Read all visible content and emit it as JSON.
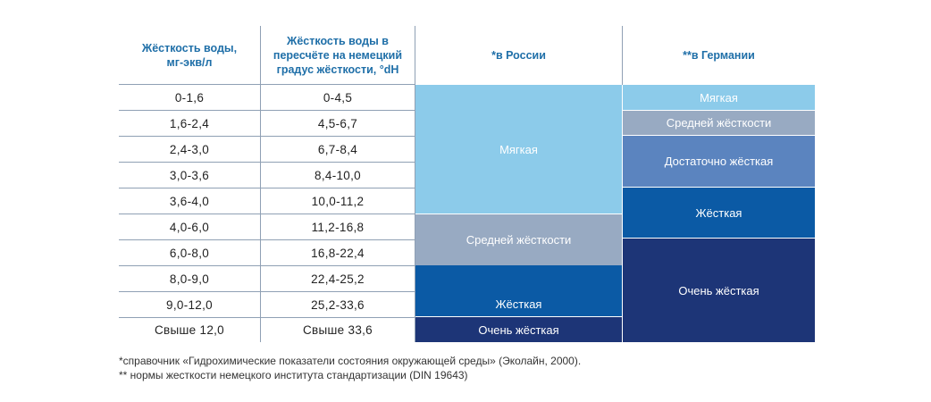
{
  "headers": {
    "col1": "Жёсткость воды,\nмг-экв/л",
    "col2": "Жёсткость воды в\nпересчёте на немецкий\nградус жёсткости, °dH",
    "col3": "*в России",
    "col4": "**в Германии"
  },
  "rows": [
    {
      "mg": "0-1,6",
      "dh": "0-4,5"
    },
    {
      "mg": "1,6-2,4",
      "dh": "4,5-6,7"
    },
    {
      "mg": "2,4-3,0",
      "dh": "6,7-8,4"
    },
    {
      "mg": "3,0-3,6",
      "dh": "8,4-10,0"
    },
    {
      "mg": "3,6-4,0",
      "dh": "10,0-11,2"
    },
    {
      "mg": "4,0-6,0",
      "dh": "11,2-16,8"
    },
    {
      "mg": "6,0-8,0",
      "dh": "16,8-22,4"
    },
    {
      "mg": "8,0-9,0",
      "dh": "22,4-25,2"
    },
    {
      "mg": "9,0-12,0",
      "dh": "25,2-33,6"
    },
    {
      "mg": "Свыше 12,0",
      "dh": "Свыше 33,6"
    }
  ],
  "russia": [
    {
      "label": "Мягкая",
      "color": "#8ccbea"
    },
    {
      "label": "Средней жёсткости",
      "color": "#98aac2"
    },
    {
      "label": "Жёсткая",
      "color": "#0b5aa5"
    },
    {
      "label": "Очень жёсткая",
      "color": "#1d3577"
    }
  ],
  "germany": [
    {
      "label": "Мягкая",
      "color": "#8ccbea"
    },
    {
      "label": "Средней жёсткости",
      "color": "#98aac2"
    },
    {
      "label": "Достаточно жёсткая",
      "color": "#5b84bf"
    },
    {
      "label": "Жёсткая",
      "color": "#0b5aa5"
    },
    {
      "label": "Очень жёсткая",
      "color": "#1d3577"
    }
  ],
  "footnotes": [
    "*справочник «Гидрохимические показатели состояния окружающей среды» (Эколайн, 2000).",
    "** нормы жесткости немецкого института стандартизации (DIN 19643)"
  ]
}
